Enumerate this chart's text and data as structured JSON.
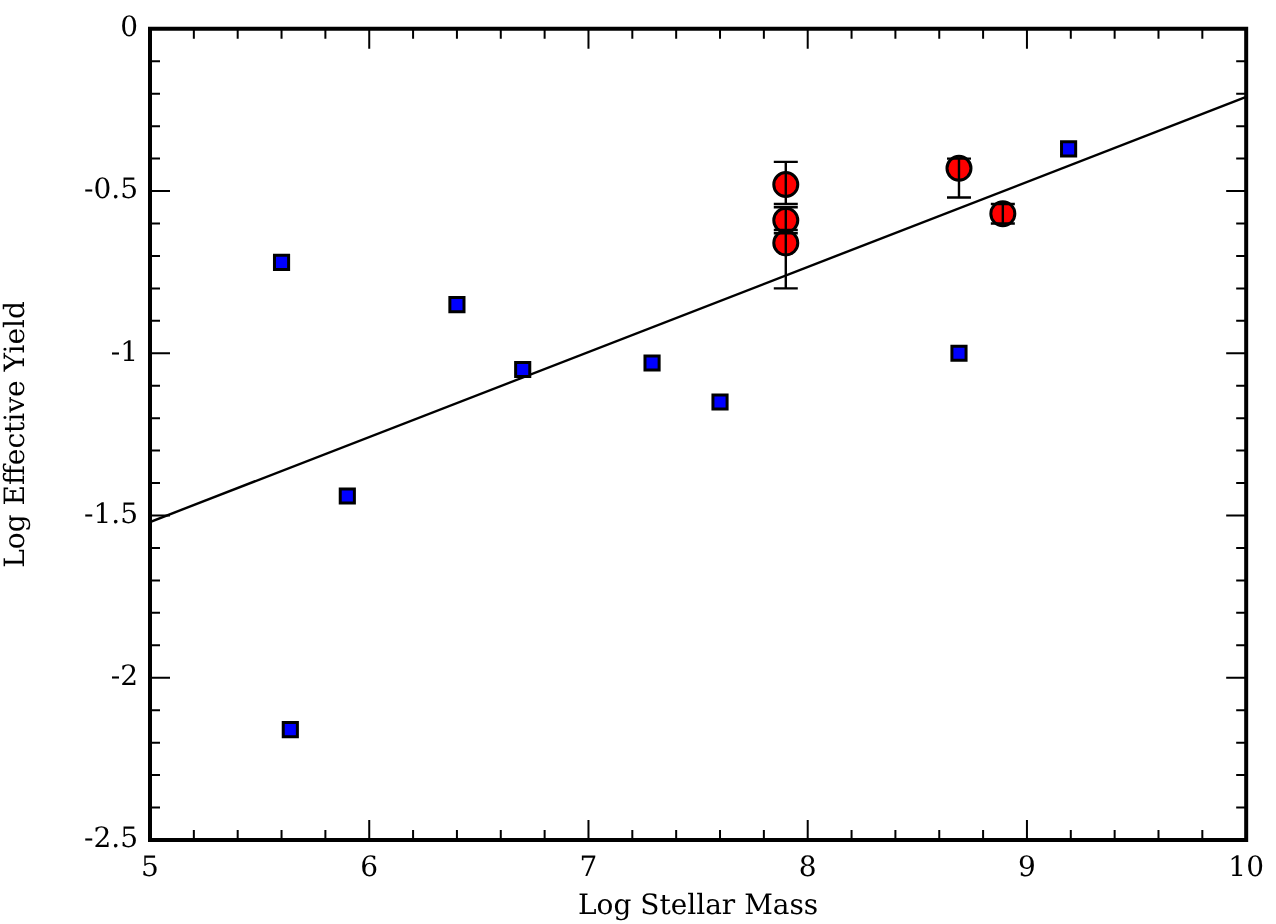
{
  "chart_data": {
    "type": "scatter",
    "xlabel": "Log Stellar Mass",
    "ylabel": "Log Effective Yield",
    "xlim": [
      5,
      10
    ],
    "ylim": [
      -2.5,
      0
    ],
    "xticks": [
      5,
      {
        "value": 5.2,
        "label": null
      },
      {
        "value": 5.4,
        "label": null
      },
      {
        "value": 5.6,
        "label": null
      },
      {
        "value": 5.8,
        "label": null
      },
      6,
      {
        "value": 6.2,
        "label": null
      },
      {
        "value": 6.4,
        "label": null
      },
      {
        "value": 6.6,
        "label": null
      },
      {
        "value": 6.8,
        "label": null
      },
      7,
      {
        "value": 7.2,
        "label": null
      },
      {
        "value": 7.4,
        "label": null
      },
      {
        "value": 7.6,
        "label": null
      },
      {
        "value": 7.8,
        "label": null
      },
      8,
      {
        "value": 8.2,
        "label": null
      },
      {
        "value": 8.4,
        "label": null
      },
      {
        "value": 8.6,
        "label": null
      },
      {
        "value": 8.8,
        "label": null
      },
      9,
      {
        "value": 9.2,
        "label": null
      },
      {
        "value": 9.4,
        "label": null
      },
      {
        "value": 9.6,
        "label": null
      },
      {
        "value": 9.8,
        "label": null
      },
      10
    ],
    "yticks": [
      -2.5,
      {
        "value": -2.4,
        "label": null
      },
      {
        "value": -2.3,
        "label": null
      },
      {
        "value": -2.2,
        "label": null
      },
      {
        "value": -2.1,
        "label": null
      },
      -2,
      {
        "value": -1.9,
        "label": null
      },
      {
        "value": -1.8,
        "label": null
      },
      {
        "value": -1.7,
        "label": null
      },
      {
        "value": -1.6,
        "label": null
      },
      -1.5,
      {
        "value": -1.4,
        "label": null
      },
      {
        "value": -1.3,
        "label": null
      },
      {
        "value": -1.2,
        "label": null
      },
      {
        "value": -1.1,
        "label": null
      },
      -1,
      {
        "value": -0.9,
        "label": null
      },
      {
        "value": -0.8,
        "label": null
      },
      {
        "value": -0.7,
        "label": null
      },
      {
        "value": -0.6,
        "label": null
      },
      -0.5,
      {
        "value": -0.4,
        "label": null
      },
      {
        "value": -0.3,
        "label": null
      },
      {
        "value": -0.2,
        "label": null
      },
      {
        "value": -0.1,
        "label": null
      },
      0
    ],
    "grid": false,
    "legend": false,
    "series": [
      {
        "type": "scatter",
        "marker": "square",
        "color": "#0000ff",
        "x": [
          5.6,
          5.64,
          5.9,
          6.4,
          6.7,
          7.29,
          7.6,
          8.69,
          9.19
        ],
        "values": [
          -0.72,
          -2.16,
          -1.44,
          -0.85,
          -1.05,
          -1.03,
          -1.15,
          -1.0,
          -0.37
        ]
      },
      {
        "type": "scatter",
        "marker": "circle",
        "color": "#ff0000",
        "x": [
          7.9,
          7.9,
          7.9,
          8.69,
          8.89
        ],
        "values": [
          -0.48,
          -0.59,
          -0.66,
          -0.43,
          -0.57
        ],
        "errors": [
          [
            -0.54,
            -0.41
          ],
          [
            -0.63,
            -0.55
          ],
          [
            -0.8,
            -0.62
          ],
          [
            -0.52,
            -0.4
          ],
          [
            -0.6,
            -0.54
          ]
        ]
      },
      {
        "type": "line",
        "marker": "none",
        "color": "#000000",
        "x": [
          5,
          10
        ],
        "values": [
          -1.52,
          -0.21
        ]
      }
    ]
  }
}
